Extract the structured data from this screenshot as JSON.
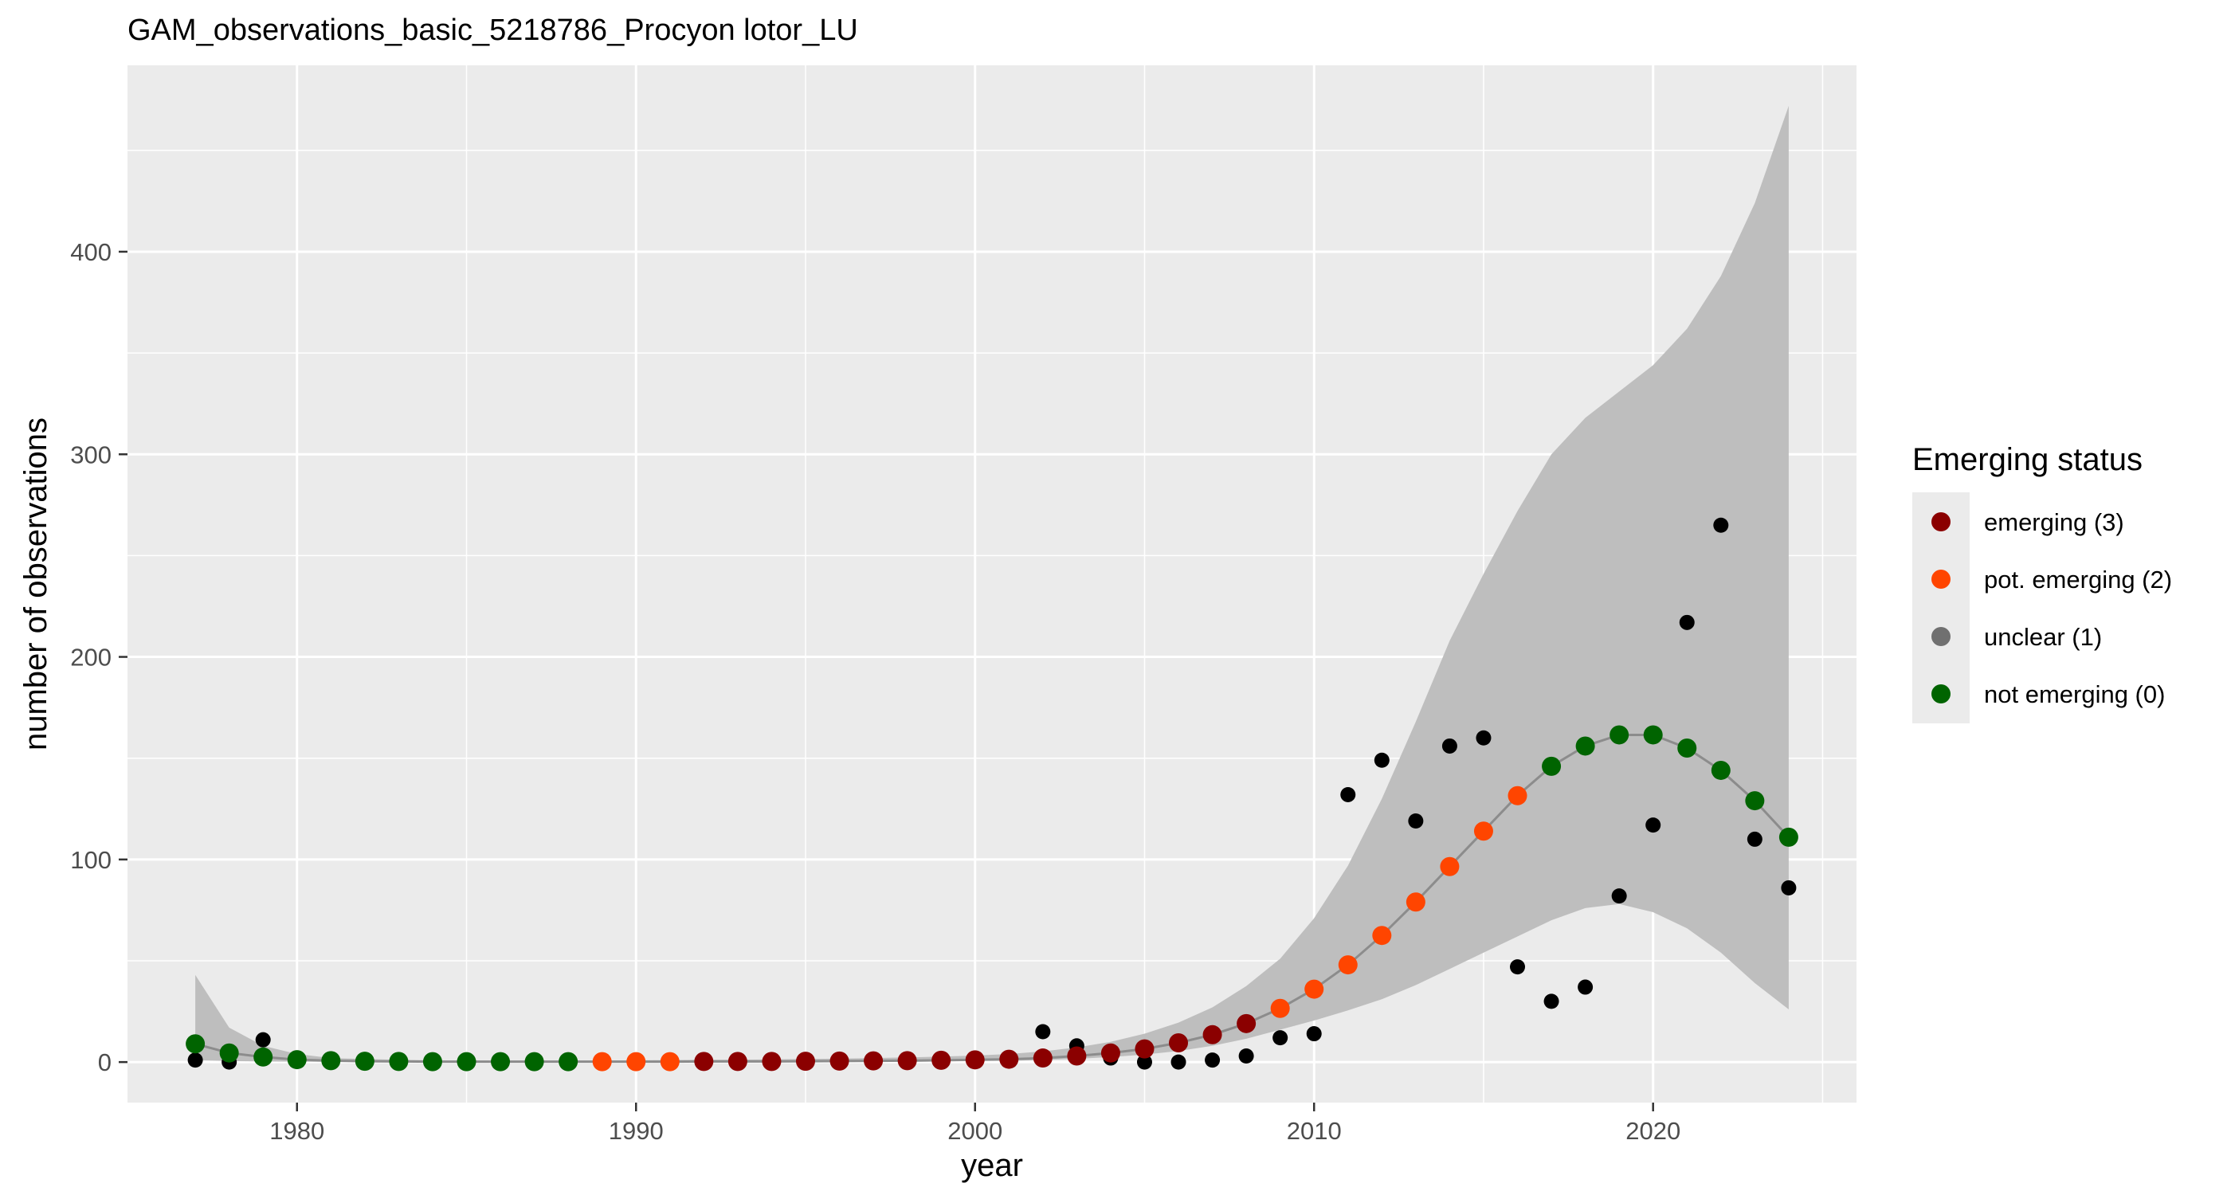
{
  "chart_data": {
    "type": "scatter",
    "title": "GAM_observations_basic_5218786_Procyon lotor_LU",
    "xlabel": "year",
    "ylabel": "number of observations",
    "xlim": [
      1975,
      2026
    ],
    "ylim": [
      -20,
      492
    ],
    "x_ticks": [
      1980,
      1990,
      2000,
      2010,
      2020
    ],
    "y_ticks": [
      0,
      100,
      200,
      300,
      400
    ],
    "grid": true,
    "legend_position": "right",
    "legend": {
      "title": "Emerging status",
      "entries": [
        {
          "label": "emerging (3)",
          "color": "#8b0000"
        },
        {
          "label": "pot. emerging (2)",
          "color": "#ff4500"
        },
        {
          "label": "unclear (1)",
          "color": "#707070"
        },
        {
          "label": "not emerging (0)",
          "color": "#006400"
        }
      ]
    },
    "colors": {
      "panel": "#ebebeb",
      "grid": "#ffffff",
      "ribbon": "#bebebe",
      "line": "#8c8c8c",
      "observed": "#000000"
    },
    "observations": {
      "x": [
        1977,
        1978,
        1979,
        1980,
        1981,
        1982,
        1983,
        1984,
        1985,
        1986,
        1987,
        1988,
        1989,
        1990,
        1991,
        1992,
        1993,
        1994,
        1995,
        1996,
        1997,
        1998,
        1999,
        2000,
        2001,
        2002,
        2003,
        2004,
        2005,
        2006,
        2007,
        2008,
        2009,
        2010,
        2011,
        2012,
        2013,
        2014,
        2015,
        2016,
        2017,
        2018,
        2019,
        2020,
        2021,
        2022,
        2023,
        2024
      ],
      "y": [
        1,
        0,
        11,
        1,
        0,
        0,
        0,
        0,
        0,
        0,
        0,
        0,
        0,
        0,
        0,
        0,
        0,
        0,
        0,
        0,
        0,
        0,
        1,
        1,
        1,
        15,
        8,
        2,
        0,
        0,
        1,
        3,
        12,
        14,
        132,
        149,
        119,
        156,
        160,
        47,
        30,
        37,
        82,
        117,
        217,
        265,
        110,
        86
      ]
    },
    "fit": {
      "x": [
        1977,
        1978,
        1979,
        1980,
        1981,
        1982,
        1983,
        1984,
        1985,
        1986,
        1987,
        1988,
        1989,
        1990,
        1991,
        1992,
        1993,
        1994,
        1995,
        1996,
        1997,
        1998,
        1999,
        2000,
        2001,
        2002,
        2003,
        2004,
        2005,
        2006,
        2007,
        2008,
        2009,
        2010,
        2011,
        2012,
        2013,
        2014,
        2015,
        2016,
        2017,
        2018,
        2019,
        2020,
        2021,
        2022,
        2023,
        2024
      ],
      "y": [
        9,
        4.5,
        2.5,
        1.2,
        0.7,
        0.4,
        0.3,
        0.2,
        0.2,
        0.2,
        0.2,
        0.2,
        0.2,
        0.2,
        0.2,
        0.3,
        0.3,
        0.3,
        0.4,
        0.5,
        0.6,
        0.7,
        0.9,
        1.1,
        1.4,
        2,
        3,
        4.5,
        6.5,
        9.5,
        13.5,
        19,
        26.5,
        36,
        48,
        62.5,
        79,
        96.5,
        114,
        131.5,
        146,
        156,
        161.5,
        161.5,
        155,
        144,
        129,
        111
      ],
      "lower": [
        1,
        0.5,
        0.3,
        0.2,
        0.1,
        0.1,
        0.1,
        0.1,
        0.1,
        0.1,
        0.1,
        0.1,
        0.1,
        0.1,
        0.1,
        0.1,
        0.1,
        0.1,
        0.1,
        0.2,
        0.2,
        0.3,
        0.4,
        0.5,
        0.7,
        1,
        1.6,
        2.5,
        3.7,
        5.5,
        8,
        11.5,
        16,
        20.5,
        25.5,
        31,
        38,
        46,
        54,
        62,
        70,
        76,
        78,
        74,
        66,
        54,
        39,
        26
      ],
      "upper": [
        43,
        17,
        8,
        4,
        2,
        1.5,
        1.1,
        0.9,
        0.8,
        0.8,
        0.8,
        0.8,
        0.8,
        0.9,
        1,
        1.1,
        1.2,
        1.3,
        1.5,
        1.7,
        2,
        2.3,
        2.7,
        3.2,
        4,
        5.3,
        7.2,
        10,
        14,
        19.5,
        27,
        37.5,
        51,
        71,
        97,
        130,
        168,
        208,
        241,
        272,
        300,
        318,
        331,
        344,
        362,
        388,
        424,
        472
      ],
      "status": [
        0,
        0,
        0,
        0,
        0,
        0,
        0,
        0,
        0,
        0,
        0,
        0,
        2,
        2,
        2,
        3,
        3,
        3,
        3,
        3,
        3,
        3,
        3,
        3,
        3,
        3,
        3,
        3,
        3,
        3,
        3,
        3,
        2,
        2,
        2,
        2,
        2,
        2,
        2,
        2,
        0,
        0,
        0,
        0,
        0,
        0,
        0,
        0
      ]
    }
  }
}
